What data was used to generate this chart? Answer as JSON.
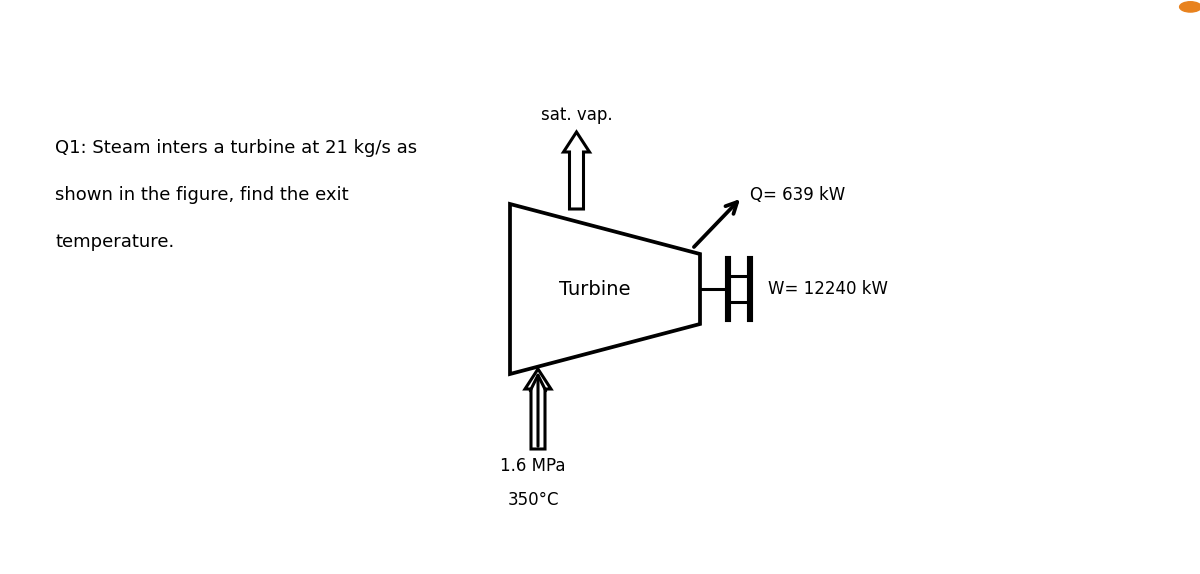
{
  "question_text_line1": "Q1: Steam inters a turbine at 21 kg/s as",
  "question_text_line2": "shown in the figure, find the exit",
  "question_text_line3": "temperature.",
  "label_sat_vap": "sat. vap.",
  "label_Q": "Q= 639 kW",
  "label_W": "W= 12240 kW",
  "label_turbine": "Turbine",
  "label_pressure": "1.6 MPa",
  "label_temp": "350°C",
  "bg_color": "#ffffff",
  "line_color": "#000000",
  "text_color": "#000000",
  "font_size_main": 13,
  "font_size_label": 11,
  "orange_dot_color": "#e8821e",
  "fig_width": 12.0,
  "fig_height": 5.74
}
